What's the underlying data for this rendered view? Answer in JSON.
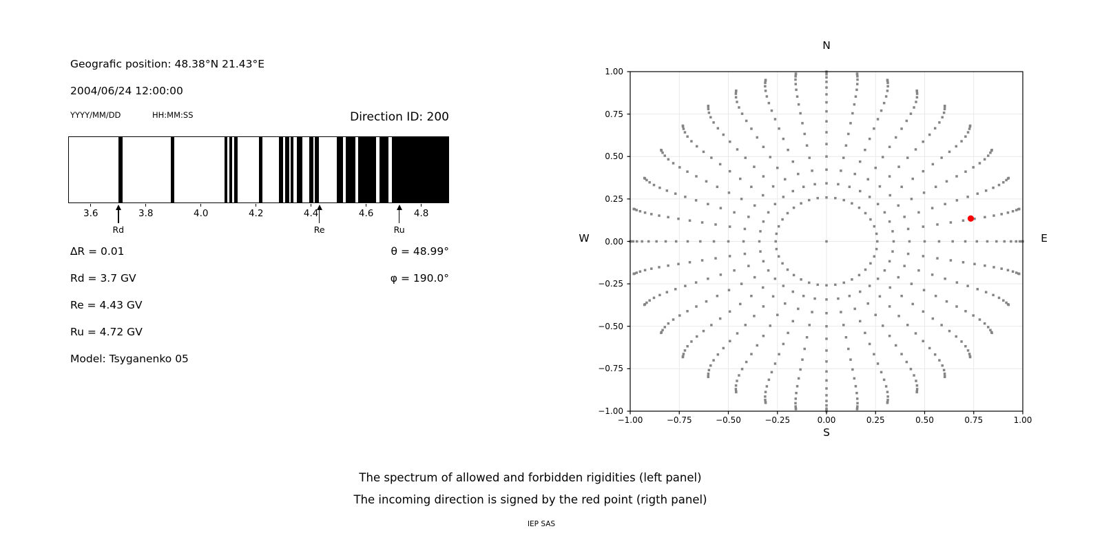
{
  "header": {
    "geo_position": "Geografic position: 48.38°N 21.43°E",
    "datetime": "2004/06/24 12:00:00",
    "date_format_label": "YYYY/MM/DD",
    "time_format_label": "HH:MM:SS",
    "direction_id": "Direction ID: 200"
  },
  "info": {
    "delta_r": "∆R = 0.01",
    "rd": "Rd = 3.7 GV",
    "re": "Re = 4.43 GV",
    "ru": "Ru = 4.72 GV",
    "model": "Model: Tsyganenko 05",
    "theta": "θ = 48.99°",
    "phi": "φ = 190.0°"
  },
  "caption": {
    "line1": "The spectrum of allowed and forbidden rigidities (left panel)",
    "line2": "The incoming direction is signed by the red point (rigth panel)",
    "credit": "IEP SAS"
  },
  "chart_data": [
    {
      "id": "rigidity_spectrum",
      "type": "bar",
      "title": "",
      "xlabel": "",
      "ylabel": "",
      "xlim": [
        3.518,
        4.901
      ],
      "xticks": [
        3.6,
        3.8,
        4.0,
        4.2,
        4.4,
        4.6,
        4.8
      ],
      "bar_color": "#000000",
      "forbidden_intervals_gv": [
        [
          3.698,
          3.713
        ],
        [
          3.89,
          3.903
        ],
        [
          4.085,
          4.096
        ],
        [
          4.103,
          4.114
        ],
        [
          4.121,
          4.133
        ],
        [
          4.21,
          4.224
        ],
        [
          4.283,
          4.298
        ],
        [
          4.306,
          4.321
        ],
        [
          4.327,
          4.337
        ],
        [
          4.35,
          4.37
        ],
        [
          4.393,
          4.408
        ],
        [
          4.415,
          4.428
        ],
        [
          4.494,
          4.517
        ],
        [
          4.528,
          4.563
        ],
        [
          4.573,
          4.638
        ],
        [
          4.65,
          4.683
        ],
        [
          4.695,
          4.901
        ]
      ],
      "markers": [
        {
          "label": "Rd",
          "value": 3.7
        },
        {
          "label": "Re",
          "value": 4.43
        },
        {
          "label": "Ru",
          "value": 4.72
        }
      ]
    },
    {
      "id": "direction_map",
      "type": "scatter",
      "xlim": [
        -1.0,
        1.0
      ],
      "ylim": [
        -1.0,
        1.0
      ],
      "xticks": [
        -1.0,
        -0.75,
        -0.5,
        -0.25,
        0.0,
        0.25,
        0.5,
        0.75,
        1.0
      ],
      "yticks": [
        1.0,
        0.75,
        0.5,
        0.25,
        0.0,
        -0.25,
        -0.5,
        -0.75,
        -1.0
      ],
      "grid": true,
      "grid_color": "#e9e9e9",
      "compass": {
        "top": "N",
        "bottom": "S",
        "left": "W",
        "right": "E"
      },
      "spokes": {
        "azimuth_start_deg": 0,
        "azimuth_step_deg": 10,
        "azimuth_count": 36,
        "zenith_start_deg": 15,
        "zenith_end_deg": 90,
        "zenith_step_deg": 5,
        "radius_rule": "r = sin(zenith)",
        "tip_bend_deg": 3,
        "dot_color": "#858585",
        "dot_size_px": 3.5
      },
      "center_dot": {
        "x": 0.0,
        "y": 0.0
      },
      "red_point": {
        "x": 0.735,
        "y": 0.135,
        "color": "#ff0000",
        "radius_px": 4.6
      }
    }
  ]
}
